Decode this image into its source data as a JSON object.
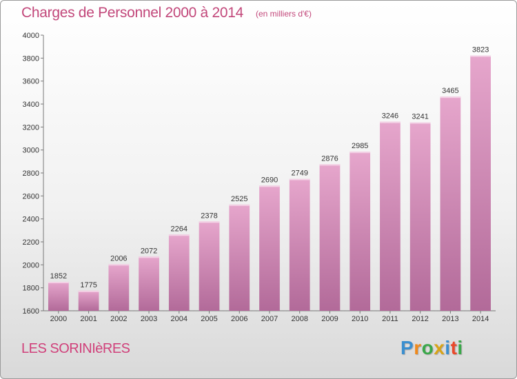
{
  "title": "Charges de Personnel 2000 à 2014",
  "subtitle": "(en milliers d'€)",
  "commune": "LES SORINIèRES",
  "logo": {
    "letters": [
      "P",
      "r",
      "o",
      "x",
      "i",
      "t",
      "i"
    ],
    "colors": [
      "#3a8fd0",
      "#f08a1c",
      "#3aa84a",
      "#d8a418",
      "#3a8fd0",
      "#e9492a",
      "#3aa84a"
    ]
  },
  "colors": {
    "bar_top": "#e6a6cc",
    "bar_bottom": "#b26a99",
    "title": "#c2477a"
  },
  "chart_data": {
    "type": "bar",
    "title": "Charges de Personnel 2000 à 2014",
    "subtitle": "(en milliers d'€)",
    "categories": [
      "2000",
      "2001",
      "2002",
      "2003",
      "2004",
      "2005",
      "2006",
      "2007",
      "2008",
      "2009",
      "2010",
      "2011",
      "2012",
      "2013",
      "2014"
    ],
    "values": [
      1852,
      1775,
      2006,
      2072,
      2264,
      2378,
      2525,
      2690,
      2749,
      2876,
      2985,
      3246,
      3241,
      3465,
      3823
    ],
    "ylim": [
      1600,
      4000
    ],
    "yticks": [
      1600,
      1800,
      2000,
      2200,
      2400,
      2600,
      2800,
      3000,
      3200,
      3400,
      3600,
      3800,
      4000
    ],
    "grid": false,
    "data_labels": true
  }
}
